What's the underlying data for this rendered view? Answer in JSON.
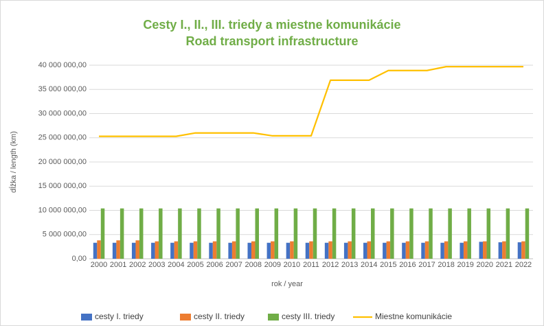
{
  "chart_data": {
    "type": "bar",
    "title": "Cesty I., II., III. triedy a miestne komunikácie",
    "subtitle": "Road transport infrastructure",
    "y_label": "dĺžka / length (km)",
    "x_label": "rok / year",
    "categories": [
      "2000",
      "2001",
      "2002",
      "2003",
      "2004",
      "2005",
      "2006",
      "2007",
      "2008",
      "2009",
      "2010",
      "2011",
      "2012",
      "2013",
      "2014",
      "2015",
      "2016",
      "2017",
      "2018",
      "2019",
      "2020",
      "2021",
      "2022"
    ],
    "series": [
      {
        "name": "cesty I. triedy",
        "type": "bar",
        "color": "#4472c4",
        "values": [
          3300000,
          3300000,
          3300000,
          3300000,
          3300000,
          3300000,
          3300000,
          3300000,
          3300000,
          3300000,
          3300000,
          3300000,
          3300000,
          3300000,
          3300000,
          3300000,
          3300000,
          3300000,
          3300000,
          3300000,
          3500000,
          3400000,
          3400000
        ]
      },
      {
        "name": "cesty II. triedy",
        "type": "bar",
        "color": "#ed7d31",
        "values": [
          3800000,
          3800000,
          3800000,
          3600000,
          3600000,
          3600000,
          3600000,
          3600000,
          3600000,
          3600000,
          3600000,
          3600000,
          3600000,
          3600000,
          3600000,
          3600000,
          3600000,
          3600000,
          3600000,
          3600000,
          3600000,
          3600000,
          3600000
        ]
      },
      {
        "name": "cesty III. triedy",
        "type": "bar",
        "color": "#70ad47",
        "values": [
          10400000,
          10400000,
          10400000,
          10400000,
          10400000,
          10400000,
          10400000,
          10400000,
          10400000,
          10400000,
          10400000,
          10400000,
          10400000,
          10400000,
          10400000,
          10400000,
          10400000,
          10400000,
          10400000,
          10400000,
          10400000,
          10400000,
          10400000
        ]
      },
      {
        "name": "Miestne komunikácie",
        "type": "line",
        "color": "#ffc000",
        "values": [
          25300000,
          25300000,
          25300000,
          25300000,
          25300000,
          26000000,
          26000000,
          26000000,
          26000000,
          25400000,
          25400000,
          25400000,
          36900000,
          36900000,
          36900000,
          38900000,
          38900000,
          38900000,
          39700000,
          39700000,
          39700000,
          39700000,
          39700000
        ]
      }
    ],
    "ylim": [
      0,
      40000000
    ],
    "yticks": [
      {
        "value": 0,
        "label": "0,00"
      },
      {
        "value": 5000000,
        "label": "5 000 000,00"
      },
      {
        "value": 10000000,
        "label": "10 000 000,00"
      },
      {
        "value": 15000000,
        "label": "15 000 000,00"
      },
      {
        "value": 20000000,
        "label": "20 000 000,00"
      },
      {
        "value": 25000000,
        "label": "25 000 000,00"
      },
      {
        "value": 30000000,
        "label": "30 000 000,00"
      },
      {
        "value": 35000000,
        "label": "35 000 000,00"
      },
      {
        "value": 40000000,
        "label": "40 000 000,00"
      }
    ],
    "grid": true,
    "legend": "bottom",
    "title_color": "#70ad47"
  }
}
